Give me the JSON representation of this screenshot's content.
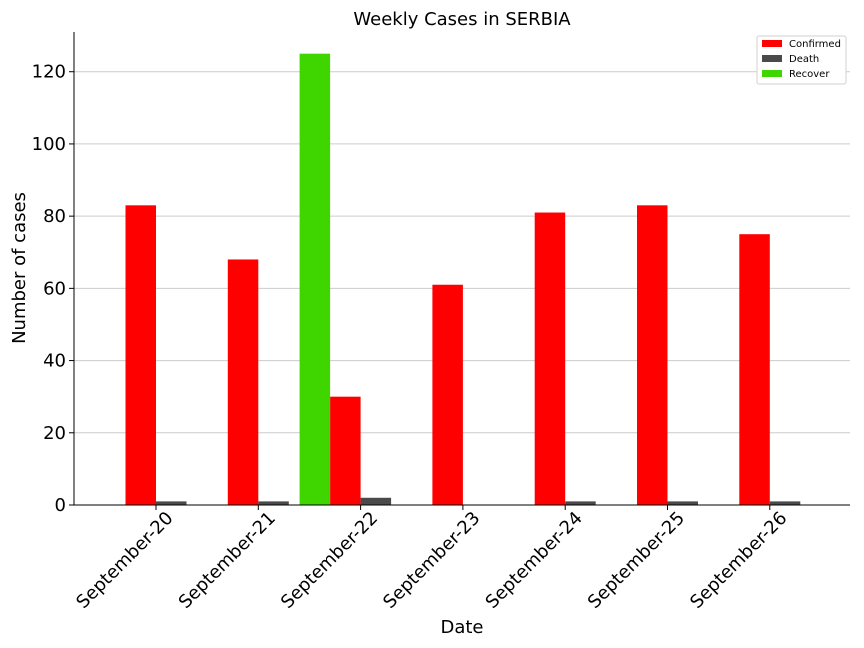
{
  "chart_data": {
    "type": "bar",
    "title": "Weekly Cases in SERBIA",
    "xlabel": "Date",
    "ylabel": "Number of cases",
    "categories": [
      "September-20",
      "September-21",
      "September-22",
      "September-23",
      "September-24",
      "September-25",
      "September-26"
    ],
    "series": [
      {
        "name": "Confirmed",
        "color": "#ff0000",
        "values": [
          83,
          68,
          30,
          61,
          81,
          83,
          75
        ]
      },
      {
        "name": "Death",
        "color": "#4a4a4a",
        "values": [
          1,
          1,
          2,
          0,
          1,
          1,
          1
        ]
      },
      {
        "name": "Recover",
        "color": "#3fd600",
        "values": [
          0,
          0,
          125,
          0,
          0,
          0,
          0
        ]
      }
    ],
    "ylim": [
      0,
      131
    ],
    "yticks": [
      0,
      20,
      40,
      60,
      80,
      100,
      120
    ],
    "grid": "horizontal",
    "legend_position": "top-right"
  }
}
